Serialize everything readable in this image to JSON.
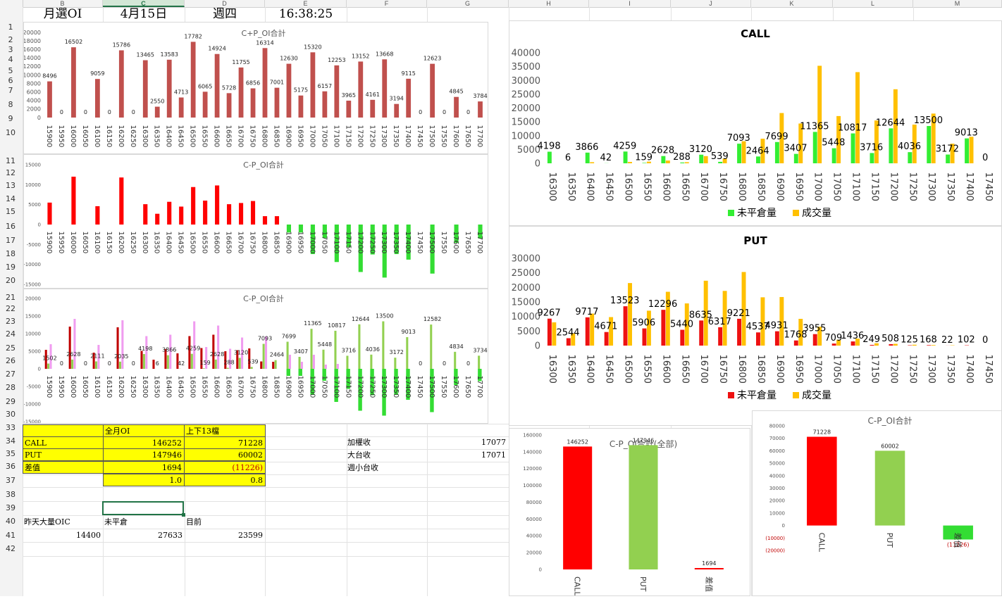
{
  "columns": [
    "B",
    "C",
    "D",
    "E",
    "F",
    "G",
    "H",
    "I",
    "J",
    "K",
    "L",
    "M"
  ],
  "rows": [
    "1",
    "2",
    "3",
    "4",
    "5",
    "6",
    "7",
    "8",
    "9",
    "10",
    "11",
    "12",
    "13",
    "14",
    "15",
    "16",
    "17",
    "18",
    "19",
    "20",
    "21",
    "22",
    "23",
    "24",
    "25",
    "26",
    "27",
    "28",
    "29",
    "30",
    "33",
    "34",
    "35",
    "36",
    "37",
    "38",
    "39",
    "40",
    "41",
    "42"
  ],
  "header": {
    "label": "月選OI",
    "date": "4月15日",
    "weekday": "週四",
    "time": "16:38:25"
  },
  "table": {
    "h_full": "全月OI",
    "h_near": "上下13檔",
    "call_label": "CALL",
    "call_full": "146252",
    "call_near": "71228",
    "put_label": "PUT",
    "put_full": "147946",
    "put_near": "60002",
    "diff_label": "差值",
    "diff_full": "1694",
    "diff_near": "(11226)",
    "ratio_full": "1.0",
    "ratio_near": "0.8"
  },
  "side": {
    "weighted_label": "加權收",
    "weighted_value": "17077",
    "tx_label": "大台收",
    "tx_value": "17071",
    "weekly_label": "週小台收"
  },
  "bottom": {
    "h1": "昨天大量OIC",
    "h2": "未平倉",
    "h3": "目前",
    "v1": "14400",
    "v2": "27633",
    "v3": "23599"
  },
  "chart_data": [
    {
      "type": "bar",
      "title": "C+P_OI合計",
      "categories": [
        "15900",
        "15950",
        "16000",
        "16050",
        "16100",
        "16150",
        "16200",
        "16250",
        "16300",
        "16350",
        "16400",
        "16450",
        "16500",
        "16550",
        "16600",
        "16650",
        "16700",
        "16750",
        "16800",
        "16850",
        "16900",
        "16950",
        "17000",
        "17050",
        "17100",
        "17150",
        "17200",
        "17250",
        "17300",
        "17350",
        "17400",
        "17450",
        "17500",
        "17550",
        "17600",
        "17650",
        "17700"
      ],
      "values": [
        8496,
        0,
        16502,
        0,
        9059,
        0,
        15786,
        0,
        13465,
        2550,
        13583,
        4713,
        17782,
        6065,
        14924,
        5728,
        11755,
        6856,
        16314,
        7001,
        12630,
        5175,
        15320,
        6157,
        12253,
        3965,
        13152,
        4161,
        13668,
        3194,
        9115,
        0,
        12623,
        0,
        4845,
        0,
        3784
      ],
      "ylim": [
        0,
        20000
      ],
      "yticks": [
        0,
        2000,
        4000,
        6000,
        8000,
        10000,
        12000,
        14000,
        16000,
        18000,
        20000
      ],
      "color": "#c0504d"
    },
    {
      "type": "bar",
      "title": "C-P_OI合計",
      "categories": [
        "15900",
        "15950",
        "16000",
        "16050",
        "16100",
        "16150",
        "16200",
        "16250",
        "16300",
        "16350",
        "16400",
        "16450",
        "16500",
        "16550",
        "16600",
        "16650",
        "16700",
        "16750",
        "16800",
        "16850",
        "16900",
        "16950",
        "17000",
        "17050",
        "17100",
        "17150",
        "17200",
        "17250",
        "17300",
        "17350",
        "17400",
        "17450",
        "17500",
        "17550",
        "17600",
        "17650",
        "17700"
      ],
      "values": [
        5500,
        0,
        12000,
        0,
        4600,
        0,
        11800,
        0,
        5100,
        2700,
        5700,
        4500,
        9400,
        6000,
        9800,
        5100,
        5400,
        5900,
        2100,
        2100,
        -2000,
        -2000,
        -7400,
        -3400,
        -9400,
        -5700,
        -11900,
        -7500,
        -13300,
        -7400,
        -8800,
        0,
        -12300,
        0,
        -4600,
        0,
        -3500
      ],
      "ylim": [
        -15000,
        15000
      ],
      "yticks": [
        -15000,
        -10000,
        -5000,
        0,
        5000,
        10000,
        15000
      ],
      "colors": {
        "positive": "#ff0000",
        "negative": "#33dd33"
      }
    },
    {
      "type": "bar",
      "title": "C-P_OI合計",
      "categories": [
        "15900",
        "15950",
        "16000",
        "16050",
        "16100",
        "16150",
        "16200",
        "16250",
        "16300",
        "16350",
        "16400",
        "16450",
        "16500",
        "16550",
        "16600",
        "16650",
        "16700",
        "16750",
        "16800",
        "16850",
        "16900",
        "16950",
        "17000",
        "17050",
        "17100",
        "17150",
        "17200",
        "17250",
        "17300",
        "17350",
        "17400",
        "17450",
        "17500",
        "17550",
        "17600",
        "17650",
        "17700"
      ],
      "series": [
        {
          "values": [
            5400,
            0,
            12000,
            0,
            4600,
            0,
            11800,
            0,
            5100,
            2600,
            5600,
            4400,
            9300,
            5900,
            9700,
            5000,
            5300,
            5800,
            2100,
            2000,
            0,
            0,
            0,
            0,
            0,
            0,
            0,
            0,
            0,
            0,
            0,
            0,
            0,
            0,
            0,
            0,
            0
          ],
          "color": "#c00000"
        },
        {
          "values": [
            1502,
            0,
            2628,
            0,
            2111,
            0,
            2035,
            0,
            4198,
            6,
            3866,
            42,
            4259,
            159,
            2628,
            288,
            3120,
            539,
            7093,
            2464,
            7699,
            3407,
            11365,
            5448,
            10817,
            3716,
            12644,
            4036,
            13500,
            3172,
            9013,
            0,
            12582,
            0,
            4834,
            0,
            3734
          ],
          "color": "#92d050"
        },
        {
          "values": [
            7000,
            0,
            14200,
            0,
            6800,
            0,
            13800,
            0,
            9300,
            0,
            9700,
            0,
            13500,
            6200,
            12300,
            5700,
            8900,
            0,
            9200,
            0,
            4000,
            2000,
            4000,
            1200,
            1400,
            0,
            0,
            0,
            0,
            0,
            0,
            0,
            0,
            0,
            0,
            0,
            0
          ],
          "color": "#f09cf0"
        },
        {
          "values": [
            0,
            0,
            0,
            0,
            0,
            0,
            0,
            0,
            0,
            0,
            0,
            0,
            0,
            0,
            0,
            0,
            0,
            0,
            0,
            0,
            -2000,
            -2000,
            -7400,
            -3400,
            -9400,
            -5700,
            -11900,
            -7500,
            -13300,
            -7400,
            -8800,
            0,
            -12300,
            0,
            -4600,
            0,
            -3500
          ],
          "color": "#33dd33"
        }
      ],
      "labels": [
        "1502",
        "0",
        "2628",
        "0",
        "2111",
        "0",
        "2035",
        "0",
        "4198",
        "6",
        "3866",
        "42",
        "4259",
        "159",
        "2628",
        "288",
        "3120",
        "539",
        "7093",
        "2464",
        "7699",
        "3407",
        "11365",
        "5448",
        "10817",
        "3716",
        "12644",
        "4036",
        "13500",
        "3172",
        "9013",
        "0",
        "12582",
        "0",
        "4834",
        "0",
        "3734"
      ],
      "ylim": [
        -15000,
        20000
      ],
      "yticks": [
        -15000,
        -10000,
        -5000,
        0,
        5000,
        10000,
        15000,
        20000
      ]
    },
    {
      "type": "bar",
      "title": "CALL",
      "categories": [
        "16300",
        "16350",
        "16400",
        "16450",
        "16500",
        "16550",
        "16600",
        "16650",
        "16700",
        "16750",
        "16800",
        "16850",
        "16900",
        "16950",
        "17000",
        "17050",
        "17100",
        "17150",
        "17200",
        "17250",
        "17300",
        "17350",
        "17400",
        "17450"
      ],
      "series": [
        {
          "name": "未平倉量",
          "values": [
            4198,
            6,
            3866,
            42,
            4259,
            159,
            2628,
            288,
            3120,
            539,
            7093,
            2464,
            7699,
            3407,
            11365,
            5448,
            10817,
            3716,
            12644,
            4036,
            13500,
            3172,
            9013,
            0
          ],
          "color": "#33ee33"
        },
        {
          "name": "成交量",
          "values": [
            0,
            0,
            400,
            0,
            500,
            600,
            1000,
            400,
            2600,
            1700,
            8000,
            8900,
            18200,
            14400,
            35300,
            17100,
            33000,
            15500,
            26800,
            14000,
            18000,
            7100,
            9600,
            0
          ],
          "color": "#ffc000"
        }
      ],
      "ylim": [
        0,
        40000
      ],
      "yticks": [
        0,
        5000,
        10000,
        15000,
        20000,
        25000,
        30000,
        35000,
        40000
      ]
    },
    {
      "type": "bar",
      "title": "PUT",
      "categories": [
        "16300",
        "16350",
        "16400",
        "16450",
        "16500",
        "16550",
        "16600",
        "16650",
        "16700",
        "16750",
        "16800",
        "16850",
        "16900",
        "16950",
        "17000",
        "17050",
        "17100",
        "17150",
        "17200",
        "17250",
        "17300",
        "17350",
        "17400",
        "17450"
      ],
      "series": [
        {
          "name": "未平倉量",
          "values": [
            9267,
            2544,
            9717,
            4671,
            13523,
            5906,
            12296,
            5440,
            8635,
            6317,
            9221,
            4537,
            4931,
            1768,
            3955,
            709,
            1436,
            249,
            508,
            125,
            168,
            22,
            102,
            0
          ],
          "color": "#ee1111"
        },
        {
          "name": "成交量",
          "values": [
            8000,
            4200,
            11000,
            9800,
            21500,
            12000,
            18500,
            14500,
            22300,
            18800,
            25300,
            16600,
            16700,
            9200,
            6500,
            2000,
            2400,
            800,
            600,
            300,
            200,
            100,
            0,
            0
          ],
          "color": "#ffc000"
        }
      ],
      "ylim": [
        0,
        30000
      ],
      "yticks": [
        0,
        5000,
        10000,
        15000,
        20000,
        25000,
        30000
      ]
    },
    {
      "type": "bar",
      "title": "C-P_OI合計(全部)",
      "categories": [
        "CALL",
        "PUT",
        "差值"
      ],
      "values": [
        146252,
        147946,
        1694
      ],
      "labels": [
        "146252",
        "147946",
        "1694"
      ],
      "colors": [
        "#ff0000",
        "#92d050",
        "#ff0000"
      ],
      "ylim": [
        0,
        160000
      ],
      "yticks": [
        0,
        20000,
        40000,
        60000,
        80000,
        100000,
        120000,
        140000,
        160000
      ]
    },
    {
      "type": "bar",
      "title": "C-P_OI合計",
      "categories": [
        "CALL",
        "PUT",
        "差值"
      ],
      "values": [
        71228,
        60002,
        -11226
      ],
      "labels": [
        "71228",
        "60002",
        "(11226)"
      ],
      "colors": [
        "#ff0000",
        "#92d050",
        "#33dd33"
      ],
      "ylim": [
        -20000,
        80000
      ],
      "yticks": [
        -20000,
        -10000,
        0,
        10000,
        20000,
        30000,
        40000,
        50000,
        60000,
        70000,
        80000
      ],
      "ytick_labels": [
        "(20000)",
        "(10000)",
        "0",
        "10000",
        "20000",
        "30000",
        "40000",
        "50000",
        "60000",
        "70000",
        "80000"
      ]
    }
  ]
}
